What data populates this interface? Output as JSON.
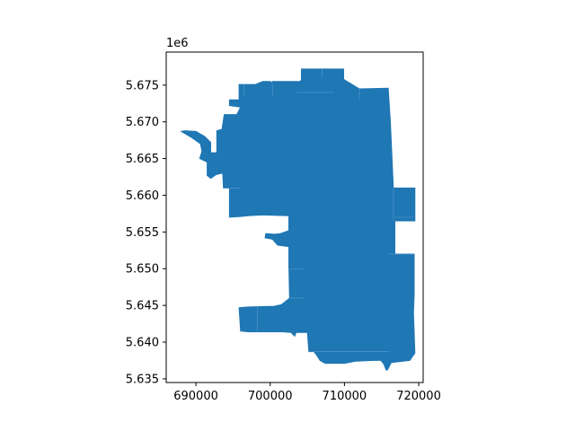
{
  "chart_data": {
    "type": "map",
    "title": "",
    "xlabel": "",
    "ylabel": "",
    "axis_offset_label": "1e6",
    "xlim": [
      686000,
      720600
    ],
    "ylim": [
      5.6345,
      5.6795
    ],
    "x_ticks": [
      690000,
      700000,
      710000,
      720000
    ],
    "x_tick_labels": [
      "690000",
      "700000",
      "710000",
      "720000"
    ],
    "y_ticks": [
      5.635,
      5.64,
      5.645,
      5.65,
      5.655,
      5.66,
      5.665,
      5.67,
      5.675
    ],
    "y_tick_labels": [
      "5.635",
      "5.640",
      "5.645",
      "5.650",
      "5.655",
      "5.660",
      "5.665",
      "5.670",
      "5.675"
    ],
    "grid": false,
    "fill_color": "#1f77b4",
    "edge_color": "#ffffff",
    "outline": [
      [
        704.2,
        5.6772
      ],
      [
        709.9,
        5.6772
      ],
      [
        709.9,
        5.6758
      ],
      [
        712.0,
        5.6745
      ],
      [
        715.9,
        5.6746
      ],
      [
        716.2,
        5.67
      ],
      [
        716.6,
        5.661
      ],
      [
        719.5,
        5.661
      ],
      [
        719.5,
        5.6565
      ],
      [
        716.8,
        5.6565
      ],
      [
        716.8,
        5.652
      ],
      [
        719.4,
        5.652
      ],
      [
        719.4,
        5.6465
      ],
      [
        719.3,
        5.644
      ],
      [
        719.5,
        5.6385
      ],
      [
        718.8,
        5.6375
      ],
      [
        716.3,
        5.6372
      ],
      [
        715.8,
        5.6362
      ],
      [
        715.6,
        5.6362
      ],
      [
        715.3,
        5.637
      ],
      [
        714.9,
        5.6375
      ],
      [
        714.0,
        5.6375
      ],
      [
        711.5,
        5.6374
      ],
      [
        710.0,
        5.6371
      ],
      [
        707.4,
        5.6371
      ],
      [
        706.7,
        5.6375
      ],
      [
        706.4,
        5.638
      ],
      [
        705.9,
        5.6387
      ],
      [
        705.2,
        5.6387
      ],
      [
        705.0,
        5.6413
      ],
      [
        703.5,
        5.6413
      ],
      [
        703.3,
        5.6408
      ],
      [
        702.8,
        5.6413
      ],
      [
        701.6,
        5.6414
      ],
      [
        698.3,
        5.6414
      ],
      [
        697.0,
        5.6414
      ],
      [
        696.0,
        5.6415
      ],
      [
        695.8,
        5.6447
      ],
      [
        697.0,
        5.6448
      ],
      [
        700.5,
        5.6449
      ],
      [
        701.5,
        5.6451
      ],
      [
        702.6,
        5.646
      ],
      [
        702.5,
        5.6505
      ],
      [
        702.5,
        5.653
      ],
      [
        701.0,
        5.6532
      ],
      [
        700.3,
        5.654
      ],
      [
        699.3,
        5.6542
      ],
      [
        699.4,
        5.6548
      ],
      [
        700.6,
        5.6547
      ],
      [
        701.4,
        5.6548
      ],
      [
        702.5,
        5.6552
      ],
      [
        702.5,
        5.6572
      ],
      [
        699.0,
        5.6573
      ],
      [
        697.0,
        5.6572
      ],
      [
        696.0,
        5.6571
      ],
      [
        694.5,
        5.657
      ],
      [
        694.5,
        5.661
      ],
      [
        693.7,
        5.661
      ],
      [
        693.6,
        5.663
      ],
      [
        692.7,
        5.6628
      ],
      [
        692.0,
        5.6623
      ],
      [
        691.5,
        5.6627
      ],
      [
        691.5,
        5.6645
      ],
      [
        690.5,
        5.665
      ],
      [
        690.8,
        5.666
      ],
      [
        690.6,
        5.667
      ],
      [
        689.5,
        5.6678
      ],
      [
        688.0,
        5.6687
      ],
      [
        688.5,
        5.6688
      ],
      [
        690.0,
        5.6687
      ],
      [
        691.2,
        5.668
      ],
      [
        692.0,
        5.6672
      ],
      [
        692.0,
        5.6658
      ],
      [
        692.8,
        5.6658
      ],
      [
        692.8,
        5.6688
      ],
      [
        693.5,
        5.669
      ],
      [
        693.8,
        5.671
      ],
      [
        695.5,
        5.671
      ],
      [
        696.0,
        5.672
      ],
      [
        694.5,
        5.6722
      ],
      [
        694.5,
        5.673
      ],
      [
        695.8,
        5.673
      ],
      [
        695.8,
        5.6751
      ],
      [
        698.0,
        5.6751
      ],
      [
        699.0,
        5.6755
      ],
      [
        700.0,
        5.6755
      ],
      [
        700.3,
        5.6753
      ],
      [
        700.3,
        5.6755
      ],
      [
        702.4,
        5.6755
      ],
      [
        704.0,
        5.6755
      ],
      [
        704.2,
        5.6757
      ]
    ]
  }
}
